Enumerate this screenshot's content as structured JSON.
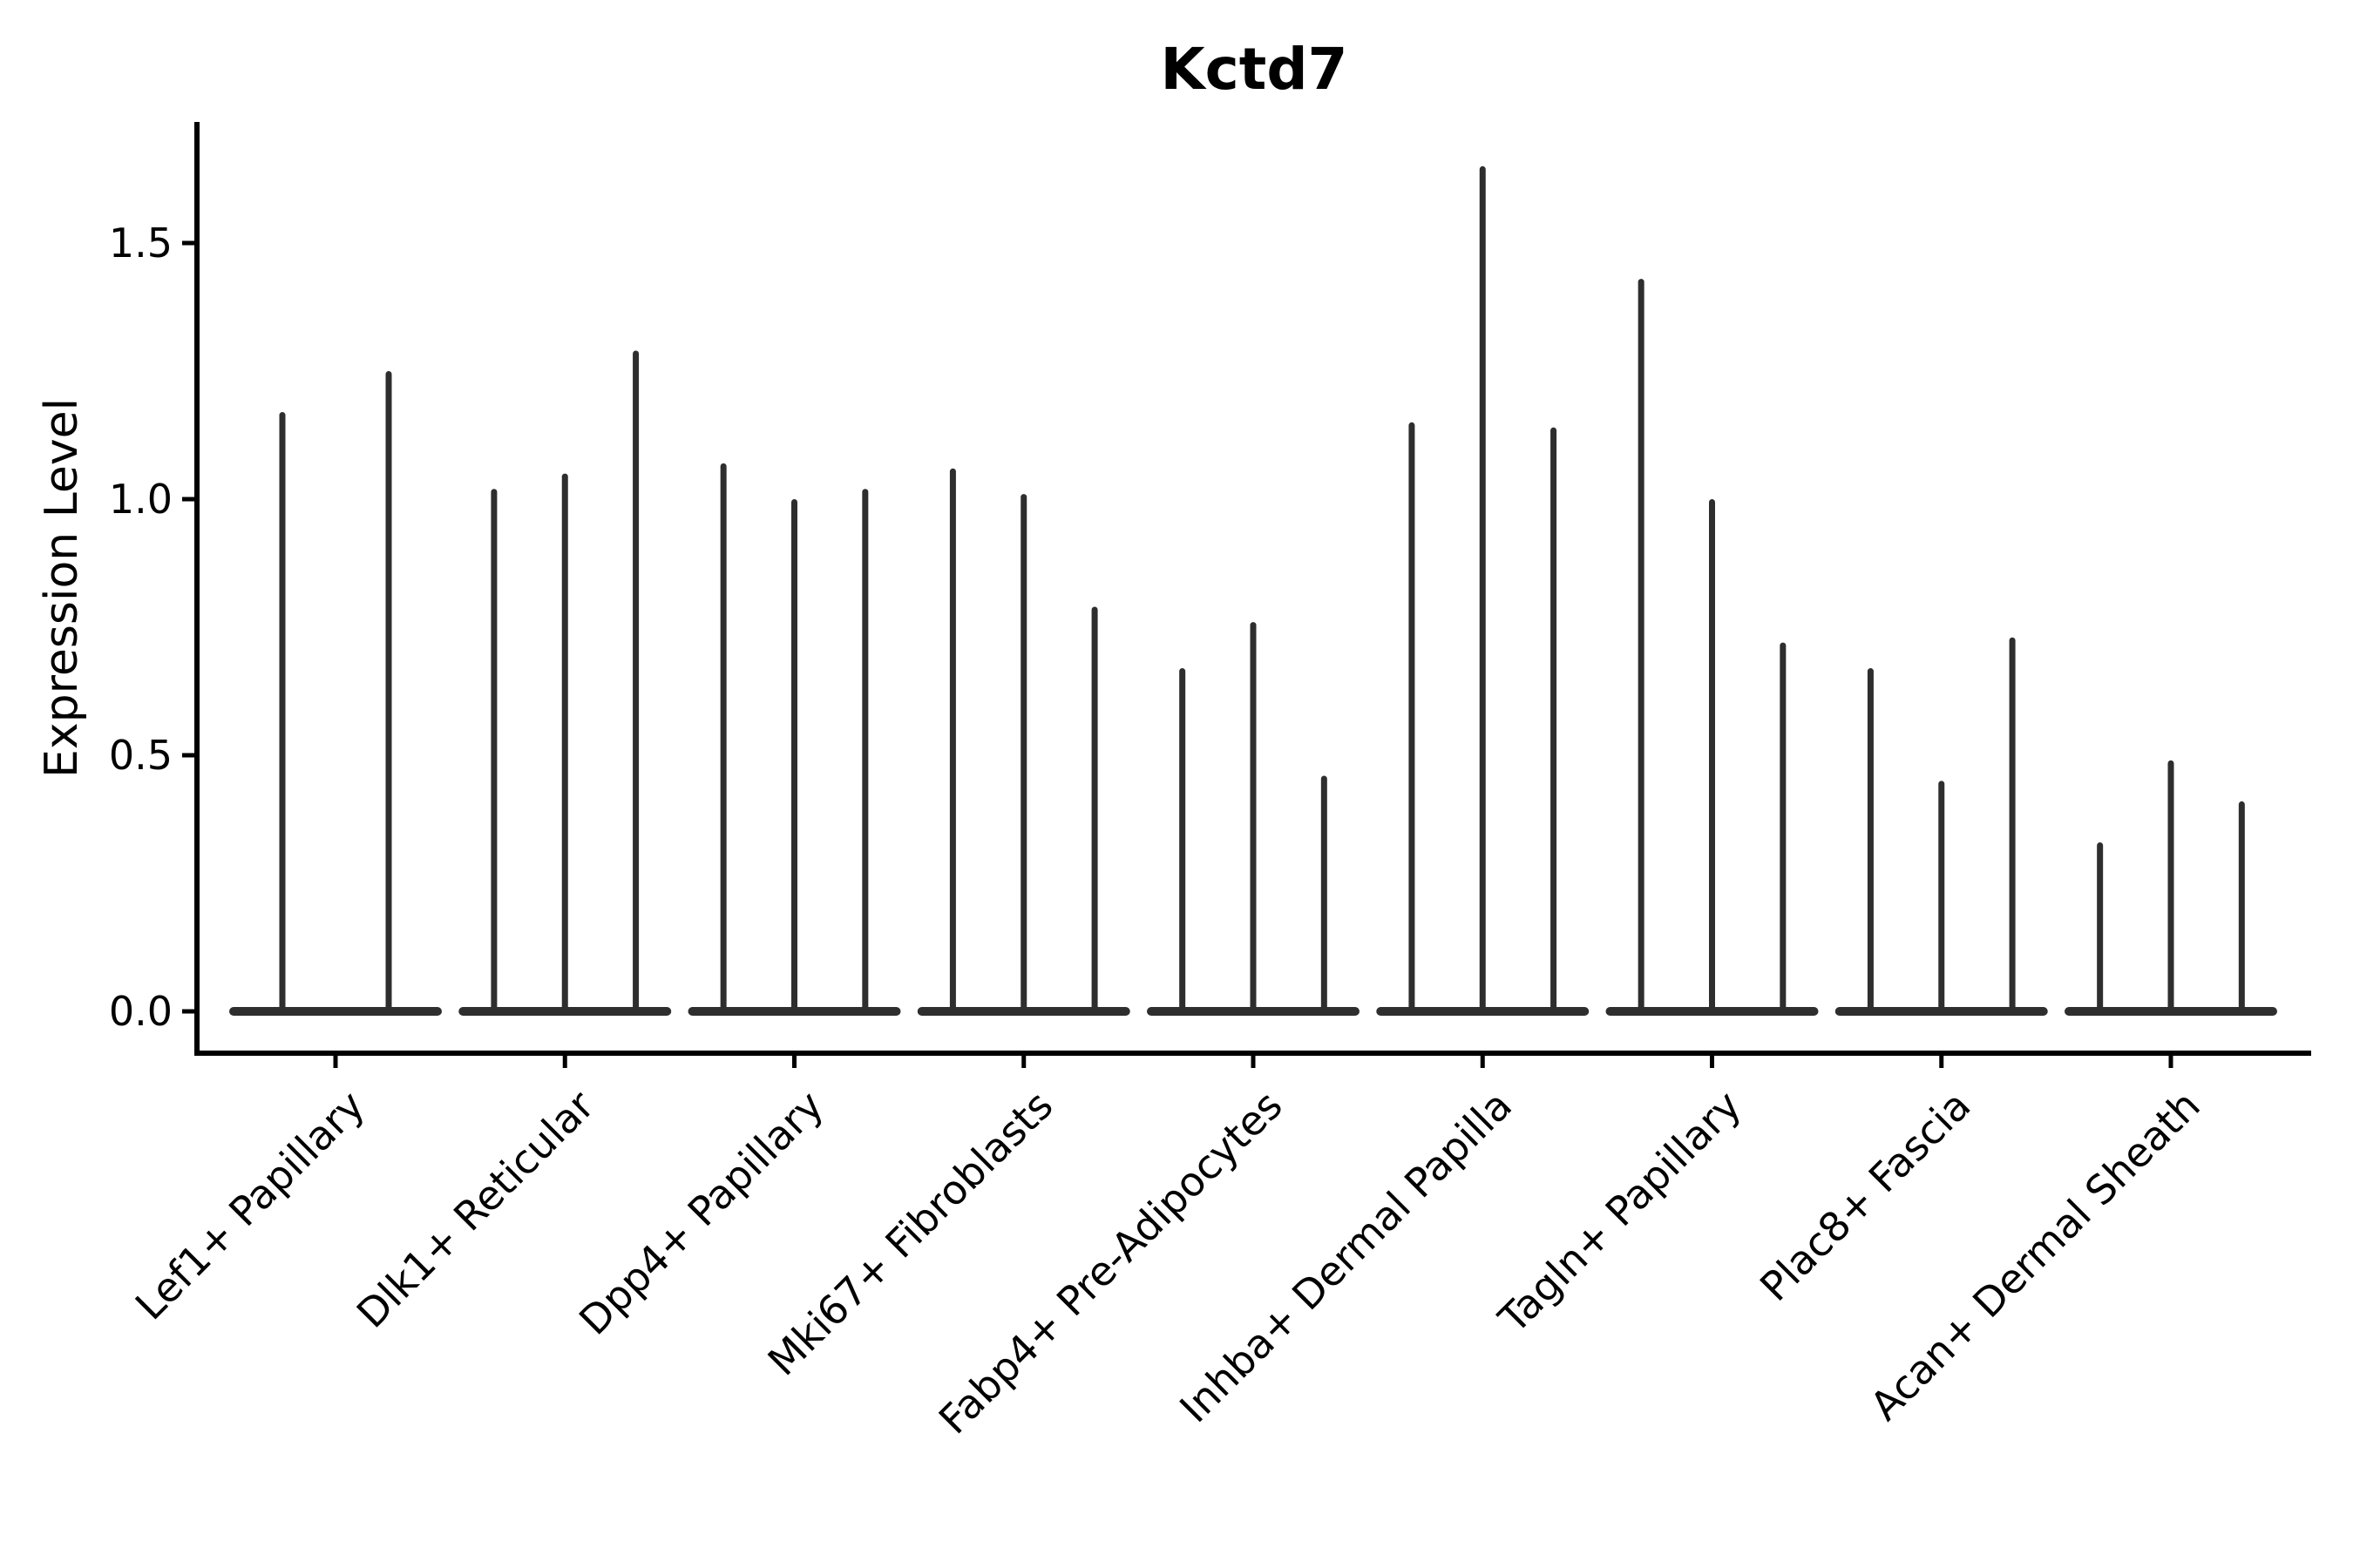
{
  "chart_data": {
    "type": "violin",
    "title": "Kctd7",
    "xlabel": "",
    "ylabel": "Expression Level",
    "legend": "none",
    "grid": false,
    "ylim": [
      -0.08,
      1.74
    ],
    "ytick_labels": [
      "0.0",
      "0.5",
      "1.0",
      "1.5"
    ],
    "ytick_values": [
      0.0,
      0.5,
      1.0,
      1.5
    ],
    "categories": [
      "Lef1+ Papillary",
      "Dlk1+ Reticular",
      "Dpp4+ Papillary",
      "Mki67+ Fibroblasts",
      "Fabp4+ Pre-Adipocytes",
      "Inhba+ Dermal Papilla",
      "Tagln+ Papillary",
      "Plac8+ Fascia",
      "Acan+ Dermal Sheath"
    ],
    "groups": [
      {
        "label": "Lef1+ Papillary",
        "spike_peaks": [
          1.17,
          1.25
        ]
      },
      {
        "label": "Dlk1+ Reticular",
        "spike_peaks": [
          1.02,
          1.05,
          1.29
        ]
      },
      {
        "label": "Dpp4+ Papillary",
        "spike_peaks": [
          1.07,
          1.0,
          1.02
        ]
      },
      {
        "label": "Mki67+ Fibroblasts",
        "spike_peaks": [
          1.06,
          1.01,
          0.79
        ]
      },
      {
        "label": "Fabp4+ Pre-Adipocytes",
        "spike_peaks": [
          0.67,
          0.76,
          0.46
        ]
      },
      {
        "label": "Inhba+ Dermal Papilla",
        "spike_peaks": [
          1.15,
          1.65,
          1.14
        ]
      },
      {
        "label": "Tagln+ Papillary",
        "spike_peaks": [
          1.43,
          1.0,
          0.72
        ]
      },
      {
        "label": "Plac8+ Fascia",
        "spike_peaks": [
          0.67,
          0.45,
          0.73
        ]
      },
      {
        "label": "Acan+ Dermal Sheath",
        "spike_peaks": [
          0.33,
          0.49,
          0.41
        ]
      }
    ],
    "description": "Violin plot of Kctd7 expression; each cluster shows very thin spike-shaped violins rising from a flat base at expression level 0.",
    "colors": {
      "violin": "#2e2e2e",
      "axis": "#000000",
      "text": "#000000",
      "background": "#ffffff"
    }
  }
}
